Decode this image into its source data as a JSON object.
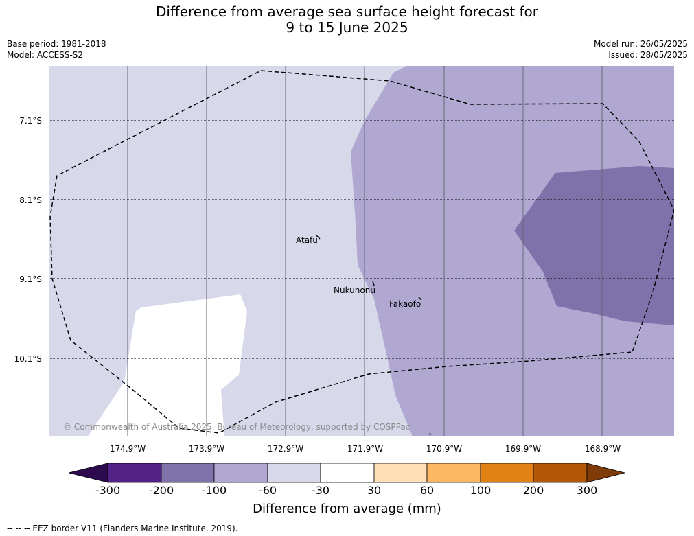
{
  "title_line1": "Difference from average sea surface height forecast for",
  "title_line2": "9 to 15 June 2025",
  "base_period": "Base period: 1981-2018",
  "model": "Model: ACCESS-S2",
  "model_run": "Model run: 26/05/2025",
  "issued": "Issued: 28/05/2025",
  "lat_labels": [
    "7.1°S",
    "8.1°S",
    "9.1°S",
    "10.1°S"
  ],
  "lon_labels": [
    "174.9°W",
    "173.9°W",
    "172.9°W",
    "171.9°W",
    "170.9°W",
    "169.9°W",
    "168.9°W"
  ],
  "places": {
    "atafu": "Atafu",
    "nukunonu": "Nukunonu",
    "fakaofo": "Fakaofo"
  },
  "copyright": "© Commonwealth of Australia 2025, Bureau of Meteorology, supported by COSPPac",
  "colorbar": {
    "ticks": [
      "-300",
      "-200",
      "-100",
      "-60",
      "-30",
      "30",
      "60",
      "100",
      "200",
      "300"
    ],
    "label": "Difference from average (mm)",
    "colors": {
      "below_-300": "#2d0a4e",
      "-300_-200": "#542286",
      "-200_-100": "#7f72ab",
      "-100_-60": "#b0a8d1",
      "-60_-30": "#d8d8eb",
      "-30_30": "#ffffff",
      "30_60": "#fee0b6",
      "60_100": "#fdb863",
      "100_200": "#e08214",
      "200_300": "#b35806",
      "above_300": "#7f3b08"
    }
  },
  "legend_note": "--  --  -- EEZ border V11 (Flanders Marine Institute, 2019)."
}
